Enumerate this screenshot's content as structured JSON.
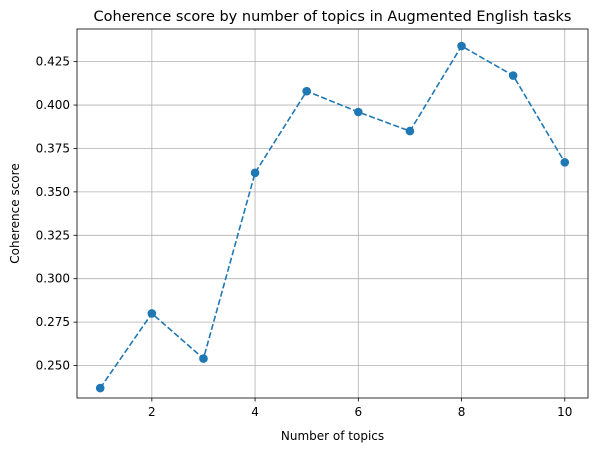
{
  "chart_data": {
    "type": "line",
    "title": "Coherence score by number of topics in Augmented English tasks",
    "xlabel": "Number of topics",
    "ylabel": "Coherence score",
    "x": [
      1,
      2,
      3,
      4,
      5,
      6,
      7,
      8,
      9,
      10
    ],
    "series": [
      {
        "values": [
          0.237,
          0.28,
          0.254,
          0.361,
          0.408,
          0.396,
          0.385,
          0.434,
          0.417,
          0.367
        ],
        "color": "#1f77b4",
        "line_style": "dashed",
        "marker": "circle"
      }
    ],
    "xlim": [
      0.55,
      10.45
    ],
    "ylim": [
      0.2313,
      0.4438
    ],
    "xticks": [
      2,
      4,
      6,
      8,
      10
    ],
    "xtick_labels": [
      "2",
      "4",
      "6",
      "8",
      "10"
    ],
    "yticks": [
      0.25,
      0.275,
      0.3,
      0.325,
      0.35,
      0.375,
      0.4,
      0.425
    ],
    "ytick_labels": [
      "0.250",
      "0.275",
      "0.300",
      "0.325",
      "0.350",
      "0.375",
      "0.400",
      "0.425"
    ],
    "grid": true,
    "grid_color": "#b0b0b0"
  }
}
